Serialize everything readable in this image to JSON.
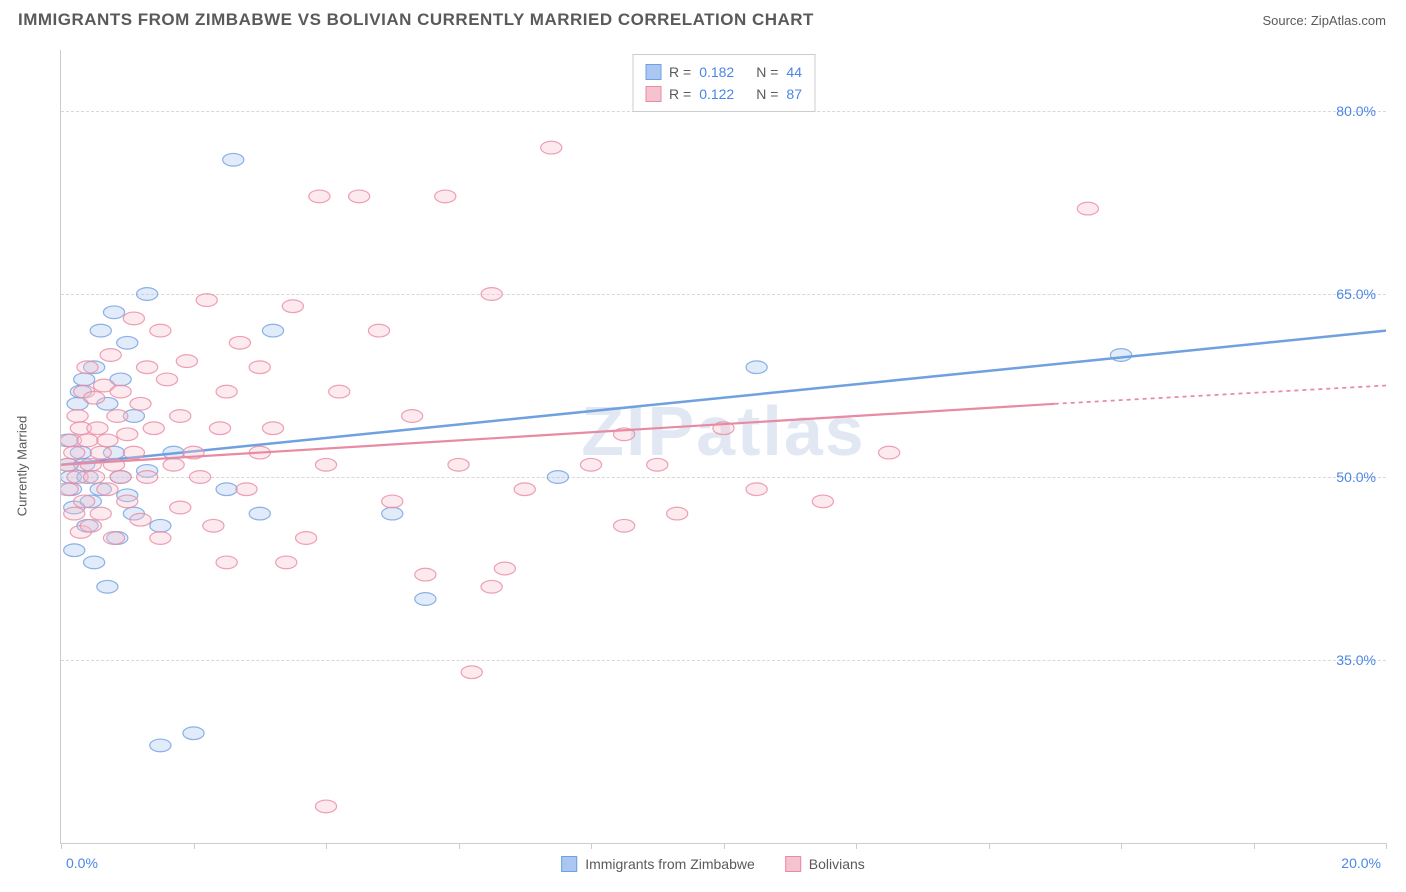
{
  "header": {
    "title": "IMMIGRANTS FROM ZIMBABWE VS BOLIVIAN CURRENTLY MARRIED CORRELATION CHART",
    "source_prefix": "Source: ",
    "source": "ZipAtlas.com"
  },
  "watermark": "ZIPatlas",
  "chart": {
    "type": "scatter",
    "ylabel": "Currently Married",
    "xlim": [
      0,
      20
    ],
    "ylim": [
      20,
      85
    ],
    "xtick_positions": [
      0,
      2,
      4,
      6,
      8,
      10,
      12,
      14,
      16,
      18,
      20
    ],
    "xtick_labels": {
      "0": "0.0%",
      "20": "20.0%"
    },
    "ytick_positions": [
      35,
      50,
      65,
      80
    ],
    "ytick_labels": [
      "35.0%",
      "50.0%",
      "65.0%",
      "80.0%"
    ],
    "grid_color": "#d8d8d8",
    "axis_color": "#cccccc",
    "background_color": "#ffffff",
    "label_color": "#4a86e8",
    "text_color": "#5a5a5a",
    "marker_radius": 7,
    "series": [
      {
        "name": "Immigrants from Zimbabwe",
        "color_fill": "#a9c7f0",
        "color_stroke": "#6fa0e0",
        "R": "0.182",
        "N": "44",
        "trend": {
          "x1": 0,
          "y1": 51,
          "x2": 20,
          "y2": 62,
          "stroke_width": 2.5
        },
        "points": [
          [
            0.1,
            51
          ],
          [
            0.1,
            53
          ],
          [
            0.15,
            50
          ],
          [
            0.15,
            49
          ],
          [
            0.2,
            47.5
          ],
          [
            0.2,
            44
          ],
          [
            0.25,
            56
          ],
          [
            0.3,
            52
          ],
          [
            0.3,
            57
          ],
          [
            0.35,
            58
          ],
          [
            0.35,
            51
          ],
          [
            0.4,
            46
          ],
          [
            0.4,
            50
          ],
          [
            0.45,
            48
          ],
          [
            0.5,
            59
          ],
          [
            0.5,
            43
          ],
          [
            0.6,
            62
          ],
          [
            0.6,
            49
          ],
          [
            0.7,
            41
          ],
          [
            0.7,
            56
          ],
          [
            0.8,
            52
          ],
          [
            0.8,
            63.5
          ],
          [
            0.85,
            45
          ],
          [
            0.9,
            50
          ],
          [
            0.9,
            58
          ],
          [
            1.0,
            48.5
          ],
          [
            1.0,
            61
          ],
          [
            1.1,
            47
          ],
          [
            1.1,
            55
          ],
          [
            1.3,
            65
          ],
          [
            1.3,
            50.5
          ],
          [
            1.5,
            28
          ],
          [
            1.5,
            46
          ],
          [
            1.7,
            52
          ],
          [
            2.0,
            29
          ],
          [
            2.5,
            49
          ],
          [
            2.6,
            76
          ],
          [
            3.0,
            47
          ],
          [
            3.2,
            62
          ],
          [
            5.0,
            47
          ],
          [
            5.5,
            40
          ],
          [
            7.5,
            50
          ],
          [
            10.5,
            59
          ],
          [
            16.0,
            60
          ]
        ]
      },
      {
        "name": "Bolivians",
        "color_fill": "#f5c3cf",
        "color_stroke": "#e98aa3",
        "R": "0.122",
        "N": "87",
        "trend": {
          "x1": 0,
          "y1": 51,
          "x2": 15,
          "y2": 56,
          "stroke_width": 2.2,
          "dash_from_x": 15,
          "dash_to_x": 20,
          "dash_to_y": 57.5
        },
        "points": [
          [
            0.1,
            51
          ],
          [
            0.1,
            49
          ],
          [
            0.15,
            53
          ],
          [
            0.2,
            47
          ],
          [
            0.2,
            52
          ],
          [
            0.25,
            55
          ],
          [
            0.25,
            50
          ],
          [
            0.3,
            45.5
          ],
          [
            0.3,
            54
          ],
          [
            0.35,
            57
          ],
          [
            0.35,
            48
          ],
          [
            0.4,
            53
          ],
          [
            0.4,
            59
          ],
          [
            0.45,
            46
          ],
          [
            0.45,
            51
          ],
          [
            0.5,
            56.5
          ],
          [
            0.5,
            50
          ],
          [
            0.55,
            54
          ],
          [
            0.6,
            52
          ],
          [
            0.6,
            47
          ],
          [
            0.65,
            57.5
          ],
          [
            0.7,
            49
          ],
          [
            0.7,
            53
          ],
          [
            0.75,
            60
          ],
          [
            0.8,
            51
          ],
          [
            0.8,
            45
          ],
          [
            0.85,
            55
          ],
          [
            0.9,
            57
          ],
          [
            0.9,
            50
          ],
          [
            1.0,
            53.5
          ],
          [
            1.0,
            48
          ],
          [
            1.1,
            63
          ],
          [
            1.1,
            52
          ],
          [
            1.2,
            56
          ],
          [
            1.2,
            46.5
          ],
          [
            1.3,
            59
          ],
          [
            1.3,
            50
          ],
          [
            1.4,
            54
          ],
          [
            1.5,
            62
          ],
          [
            1.5,
            45
          ],
          [
            1.6,
            58
          ],
          [
            1.7,
            51
          ],
          [
            1.8,
            55
          ],
          [
            1.8,
            47.5
          ],
          [
            1.9,
            59.5
          ],
          [
            2.0,
            52
          ],
          [
            2.1,
            50
          ],
          [
            2.2,
            64.5
          ],
          [
            2.3,
            46
          ],
          [
            2.4,
            54
          ],
          [
            2.5,
            57
          ],
          [
            2.5,
            43
          ],
          [
            2.7,
            61
          ],
          [
            2.8,
            49
          ],
          [
            3.0,
            59
          ],
          [
            3.0,
            52
          ],
          [
            3.2,
            54
          ],
          [
            3.4,
            43
          ],
          [
            3.5,
            64
          ],
          [
            3.7,
            45
          ],
          [
            3.9,
            73
          ],
          [
            4.0,
            23
          ],
          [
            4.0,
            51
          ],
          [
            4.2,
            57
          ],
          [
            4.5,
            73
          ],
          [
            4.8,
            62
          ],
          [
            5.0,
            48
          ],
          [
            5.3,
            55
          ],
          [
            5.5,
            42
          ],
          [
            5.8,
            73
          ],
          [
            6.0,
            51
          ],
          [
            6.2,
            34
          ],
          [
            6.5,
            65
          ],
          [
            6.5,
            41
          ],
          [
            6.7,
            42.5
          ],
          [
            7.0,
            49
          ],
          [
            7.4,
            77
          ],
          [
            8.0,
            51
          ],
          [
            8.5,
            46
          ],
          [
            8.5,
            53.5
          ],
          [
            9.0,
            51
          ],
          [
            9.3,
            47
          ],
          [
            10.0,
            54
          ],
          [
            10.5,
            49
          ],
          [
            11.5,
            48
          ],
          [
            12.5,
            52
          ],
          [
            15.5,
            72
          ]
        ]
      }
    ]
  },
  "legend_bottom": [
    {
      "label": "Immigrants from Zimbabwe",
      "fill": "#a9c7f0",
      "stroke": "#6fa0e0"
    },
    {
      "label": "Bolivians",
      "fill": "#f5c3cf",
      "stroke": "#e98aa3"
    }
  ]
}
